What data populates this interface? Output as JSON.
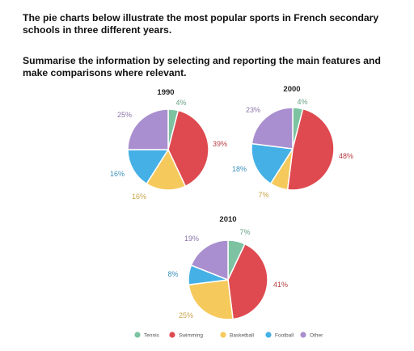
{
  "prompt": {
    "line1": "The pie charts below illustrate the most popular sports in French secondary schools in three different years.",
    "line2": "Summarise the information by selecting and reporting the main features and make comparisons where relevant."
  },
  "colors": {
    "Tennis": "#7dc3a1",
    "Swimming": "#de4a50",
    "Basketball": "#f5c95c",
    "Football": "#45b0e5",
    "Other": "#a98fcf"
  },
  "chart_data": [
    {
      "type": "pie",
      "title": "1990",
      "categories": [
        "Tennis",
        "Swimming",
        "Basketball",
        "Football",
        "Other"
      ],
      "values": [
        4,
        39,
        16,
        16,
        25
      ],
      "labels": [
        "4%",
        "39%",
        "16%",
        "16%",
        "25%"
      ]
    },
    {
      "type": "pie",
      "title": "2000",
      "categories": [
        "Tennis",
        "Swimming",
        "Basketball",
        "Football",
        "Other"
      ],
      "values": [
        4,
        48,
        7,
        18,
        23
      ],
      "labels": [
        "4%",
        "48%",
        "7%",
        "18%",
        "23%"
      ]
    },
    {
      "type": "pie",
      "title": "2010",
      "categories": [
        "Tennis",
        "Swimming",
        "Basketball",
        "Football",
        "Other"
      ],
      "values": [
        7,
        41,
        25,
        8,
        19
      ],
      "labels": [
        "7%",
        "41%",
        "25%",
        "8%",
        "19%"
      ]
    }
  ],
  "legend": [
    "Tennis",
    "Swimming",
    "Basketball",
    "Football",
    "Other"
  ]
}
